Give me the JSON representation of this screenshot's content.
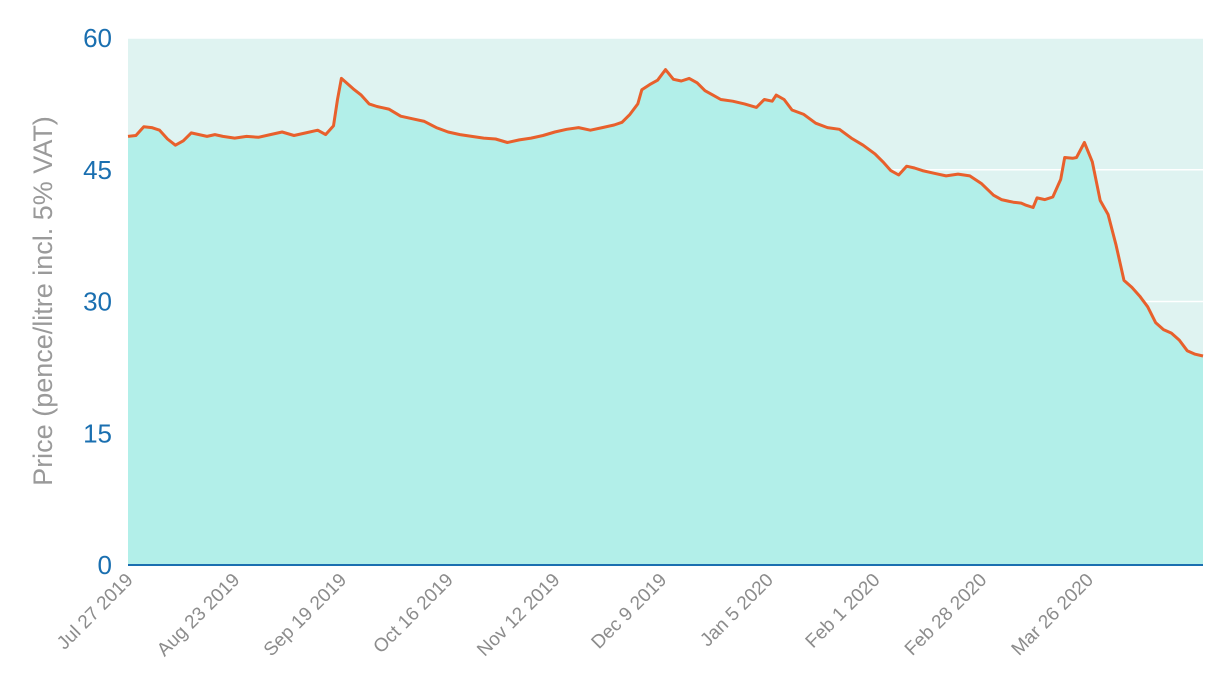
{
  "chart_data": {
    "type": "area",
    "title": "",
    "xlabel": "",
    "ylabel": "Price (pence/litre incl. 5% VAT)",
    "ylim": [
      0,
      60
    ],
    "yticks": [
      "0",
      "15",
      "30",
      "45",
      "60"
    ],
    "xlim": [
      "2019-07-27",
      "2020-04-24"
    ],
    "xticks": [
      {
        "date": "2019-07-27",
        "label": "Jul 27 2019"
      },
      {
        "date": "2019-08-23",
        "label": "Aug 23 2019"
      },
      {
        "date": "2019-09-19",
        "label": "Sep 19 2019"
      },
      {
        "date": "2019-10-16",
        "label": "Oct 16 2019"
      },
      {
        "date": "2019-11-12",
        "label": "Nov 12 2019"
      },
      {
        "date": "2019-12-09",
        "label": "Dec 9 2019"
      },
      {
        "date": "2020-01-05",
        "label": "Jan 5 2020"
      },
      {
        "date": "2020-02-01",
        "label": "Feb 1 2020"
      },
      {
        "date": "2020-02-28",
        "label": "Feb 28 2020"
      },
      {
        "date": "2020-03-26",
        "label": "Mar 26 2020"
      }
    ],
    "grid": true,
    "colors": {
      "line": "#e8602c",
      "fill": "#b2efe9",
      "plot_background": "#dff3f1",
      "axis": "#1a6fb0"
    },
    "series": [
      {
        "x": [
          "2019-07-27",
          "2019-07-29",
          "2019-07-31",
          "2019-08-02",
          "2019-08-04",
          "2019-08-06",
          "2019-08-08",
          "2019-08-10",
          "2019-08-12",
          "2019-08-14",
          "2019-08-16",
          "2019-08-18",
          "2019-08-20",
          "2019-08-23",
          "2019-08-26",
          "2019-08-29",
          "2019-09-01",
          "2019-09-04",
          "2019-09-07",
          "2019-09-10",
          "2019-09-13",
          "2019-09-15",
          "2019-09-17",
          "2019-09-18",
          "2019-09-19",
          "2019-09-20",
          "2019-09-22",
          "2019-09-24",
          "2019-09-26",
          "2019-09-28",
          "2019-10-01",
          "2019-10-04",
          "2019-10-07",
          "2019-10-10",
          "2019-10-13",
          "2019-10-16",
          "2019-10-19",
          "2019-10-22",
          "2019-10-25",
          "2019-10-28",
          "2019-10-31",
          "2019-11-03",
          "2019-11-06",
          "2019-11-09",
          "2019-11-12",
          "2019-11-15",
          "2019-11-18",
          "2019-11-21",
          "2019-11-24",
          "2019-11-27",
          "2019-11-29",
          "2019-12-01",
          "2019-12-03",
          "2019-12-04",
          "2019-12-06",
          "2019-12-08",
          "2019-12-10",
          "2019-12-12",
          "2019-12-14",
          "2019-12-16",
          "2019-12-18",
          "2019-12-20",
          "2019-12-22",
          "2019-12-24",
          "2019-12-27",
          "2019-12-30",
          "2020-01-02",
          "2020-01-04",
          "2020-01-06",
          "2020-01-07",
          "2020-01-09",
          "2020-01-11",
          "2020-01-14",
          "2020-01-17",
          "2020-01-20",
          "2020-01-23",
          "2020-01-26",
          "2020-01-29",
          "2020-02-01",
          "2020-02-03",
          "2020-02-05",
          "2020-02-07",
          "2020-02-09",
          "2020-02-11",
          "2020-02-13",
          "2020-02-16",
          "2020-02-19",
          "2020-02-22",
          "2020-02-25",
          "2020-02-28",
          "2020-03-02",
          "2020-03-04",
          "2020-03-06",
          "2020-03-07",
          "2020-03-09",
          "2020-03-10",
          "2020-03-12",
          "2020-03-13",
          "2020-03-15",
          "2020-03-17",
          "2020-03-19",
          "2020-03-20",
          "2020-03-22",
          "2020-03-23",
          "2020-03-25",
          "2020-03-27",
          "2020-03-29",
          "2020-03-31",
          "2020-04-02",
          "2020-04-04",
          "2020-04-06",
          "2020-04-08",
          "2020-04-10",
          "2020-04-12",
          "2020-04-14",
          "2020-04-16",
          "2020-04-18",
          "2020-04-20",
          "2020-04-22",
          "2020-04-24"
        ],
        "y": [
          48.8,
          48.9,
          49.9,
          49.8,
          49.5,
          48.5,
          47.8,
          48.3,
          49.2,
          49.0,
          48.8,
          49.0,
          48.8,
          48.6,
          48.8,
          48.7,
          49.0,
          49.3,
          48.9,
          49.2,
          49.5,
          49.0,
          50.0,
          53.0,
          55.4,
          55.0,
          54.2,
          53.5,
          52.5,
          52.2,
          51.9,
          51.1,
          50.8,
          50.5,
          49.8,
          49.3,
          49.0,
          48.8,
          48.6,
          48.5,
          48.1,
          48.4,
          48.6,
          48.9,
          49.3,
          49.6,
          49.8,
          49.5,
          49.8,
          50.1,
          50.4,
          51.3,
          52.5,
          54.1,
          54.7,
          55.2,
          56.4,
          55.3,
          55.1,
          55.4,
          54.9,
          54.0,
          53.5,
          53.0,
          52.8,
          52.5,
          52.1,
          53.0,
          52.8,
          53.5,
          53.0,
          51.8,
          51.3,
          50.3,
          49.8,
          49.6,
          48.6,
          47.8,
          46.8,
          45.9,
          44.9,
          44.4,
          45.4,
          45.2,
          44.9,
          44.6,
          44.3,
          44.5,
          44.3,
          43.4,
          42.1,
          41.6,
          41.4,
          41.3,
          41.2,
          41.0,
          40.7,
          41.8,
          41.6,
          41.9,
          43.9,
          46.4,
          46.3,
          46.4,
          48.1,
          45.9,
          41.5,
          39.9,
          36.4,
          32.4,
          31.6,
          30.6,
          29.4,
          27.6,
          26.8,
          26.4,
          25.6,
          24.4,
          24.0,
          23.8
        ]
      }
    ]
  }
}
